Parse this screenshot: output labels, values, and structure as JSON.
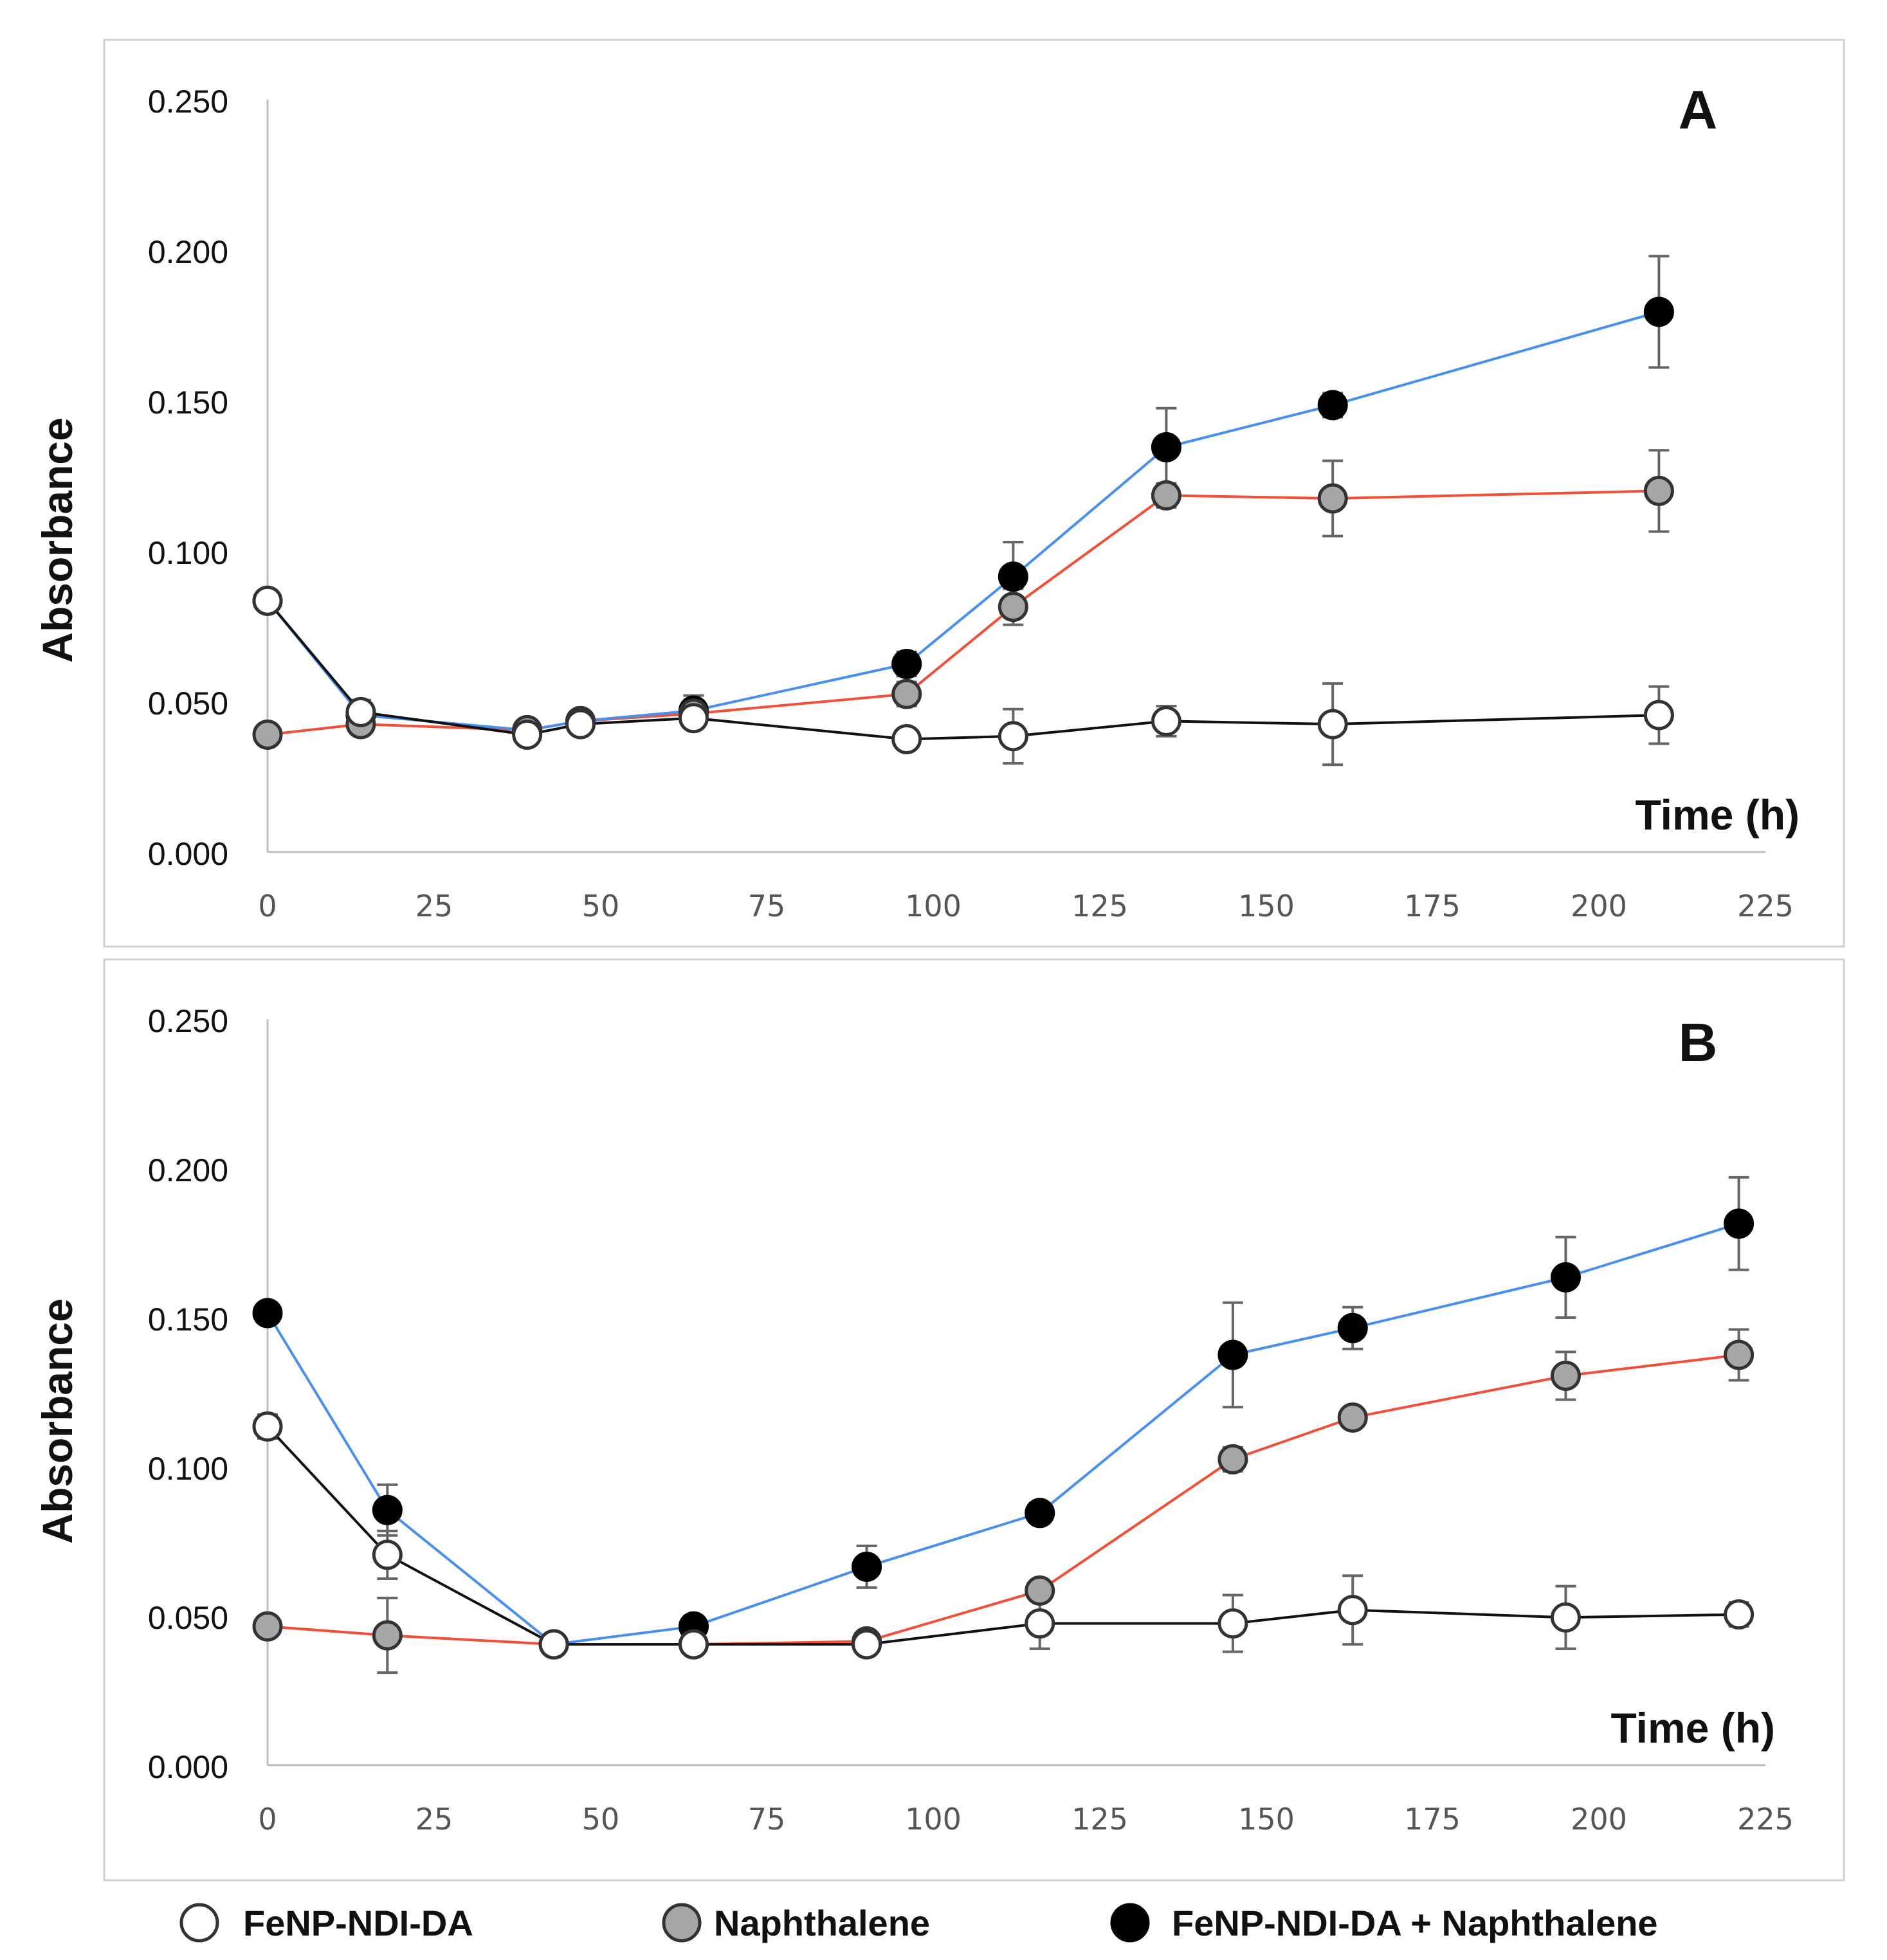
{
  "colors": {
    "fenp_line": "#111111",
    "naph_line": "#f0503a",
    "combo_line": "#4a8fee",
    "fenp_fill": "#ffffff",
    "naph_fill": "#a6a6a6",
    "combo_fill": "#000000",
    "marker_stroke": "#333333",
    "error_bar": "#666666",
    "axis": "#bdbdbd",
    "panel_border": "#d0d0d0"
  },
  "legend": [
    {
      "series": "fenp",
      "label": "FeNP-NDI-DA"
    },
    {
      "series": "naph",
      "label": "Naphthalene"
    },
    {
      "series": "combo",
      "label": "FeNP-NDI-DA + Naphthalene"
    }
  ],
  "chart_data": [
    {
      "panel": "A",
      "type": "line",
      "title": "",
      "xlabel": "Time (h)",
      "ylabel": "Absorbance",
      "xlim": [
        0,
        225
      ],
      "ylim": [
        0,
        0.25
      ],
      "x_ticks": [
        "0",
        "25",
        "50",
        "75",
        "100",
        "125",
        "150",
        "175",
        "200",
        "225"
      ],
      "y_ticks": [
        "0.000",
        "0.050",
        "0.100",
        "0.150",
        "0.200",
        "0.250"
      ],
      "grid": false,
      "series": [
        {
          "key": "fenp",
          "name": "FeNP-NDI-DA",
          "x": [
            0,
            14,
            39,
            47,
            64,
            96,
            112,
            135,
            160,
            209
          ],
          "y": [
            0.0835,
            0.0465,
            0.039,
            0.0425,
            0.0445,
            0.0375,
            0.0385,
            0.0435,
            0.0425,
            0.0455
          ],
          "err": [
            0.002,
            0.004,
            0.003,
            0.003,
            0.003,
            0.003,
            0.009,
            0.005,
            0.0135,
            0.0095
          ]
        },
        {
          "key": "naph",
          "name": "Naphthalene",
          "x": [
            0,
            14,
            39,
            47,
            64,
            96,
            112,
            135,
            160,
            209
          ],
          "y": [
            0.039,
            0.0425,
            0.0405,
            0.0435,
            0.046,
            0.0525,
            0.0815,
            0.1185,
            0.1175,
            0.12
          ],
          "err": [
            0.002,
            0.003,
            0.003,
            0.003,
            0.003,
            0.004,
            0.006,
            0.004,
            0.0125,
            0.0135
          ]
        },
        {
          "key": "combo",
          "name": "FeNP-NDI-DA + Naphthalene",
          "x": [
            0,
            14,
            39,
            47,
            64,
            96,
            112,
            135,
            160,
            209
          ],
          "y": [
            0.0835,
            0.0455,
            0.0405,
            0.0435,
            0.047,
            0.0625,
            0.0915,
            0.1345,
            0.1485,
            0.1795
          ],
          "err": [
            0.002,
            0.003,
            0.003,
            0.003,
            0.005,
            0.004,
            0.0115,
            0.013,
            0.004,
            0.0185
          ]
        }
      ]
    },
    {
      "panel": "B",
      "type": "line",
      "title": "",
      "xlabel": "Time (h)",
      "ylabel": "Absorbance",
      "xlim": [
        0,
        225
      ],
      "ylim": [
        0,
        0.25
      ],
      "x_ticks": [
        "0",
        "25",
        "50",
        "75",
        "100",
        "125",
        "150",
        "175",
        "200",
        "225"
      ],
      "y_ticks": [
        "0.000",
        "0.050",
        "0.100",
        "0.150",
        "0.200",
        "0.250"
      ],
      "grid": false,
      "series": [
        {
          "key": "fenp",
          "name": "FeNP-NDI-DA",
          "x": [
            0,
            18,
            43,
            64,
            90,
            116,
            145,
            163,
            195,
            221
          ],
          "y": [
            0.1135,
            0.0705,
            0.0405,
            0.0405,
            0.0405,
            0.0475,
            0.0475,
            0.052,
            0.0495,
            0.0505
          ],
          "err": [
            0.004,
            0.008,
            0.003,
            0.003,
            0.003,
            0.0085,
            0.0095,
            0.0115,
            0.0105,
            0.004
          ]
        },
        {
          "key": "naph",
          "name": "Naphthalene",
          "x": [
            0,
            18,
            43,
            64,
            90,
            116,
            145,
            163,
            195,
            221
          ],
          "y": [
            0.0465,
            0.0435,
            0.0405,
            0.0405,
            0.0415,
            0.0585,
            0.1025,
            0.1165,
            0.1305,
            0.1375
          ],
          "err": [
            0.002,
            0.0125,
            0.003,
            0.003,
            0.003,
            0.003,
            0.004,
            0.003,
            0.008,
            0.0085
          ]
        },
        {
          "key": "combo",
          "name": "FeNP-NDI-DA + Naphthalene",
          "x": [
            0,
            18,
            43,
            64,
            90,
            116,
            145,
            163,
            195,
            221
          ],
          "y": [
            0.1515,
            0.0855,
            0.0405,
            0.0465,
            0.0665,
            0.0845,
            0.1375,
            0.1465,
            0.1635,
            0.1815
          ],
          "err": [
            0.002,
            0.0085,
            0.003,
            0.003,
            0.007,
            0.003,
            0.0175,
            0.007,
            0.0135,
            0.0155
          ]
        }
      ]
    }
  ]
}
